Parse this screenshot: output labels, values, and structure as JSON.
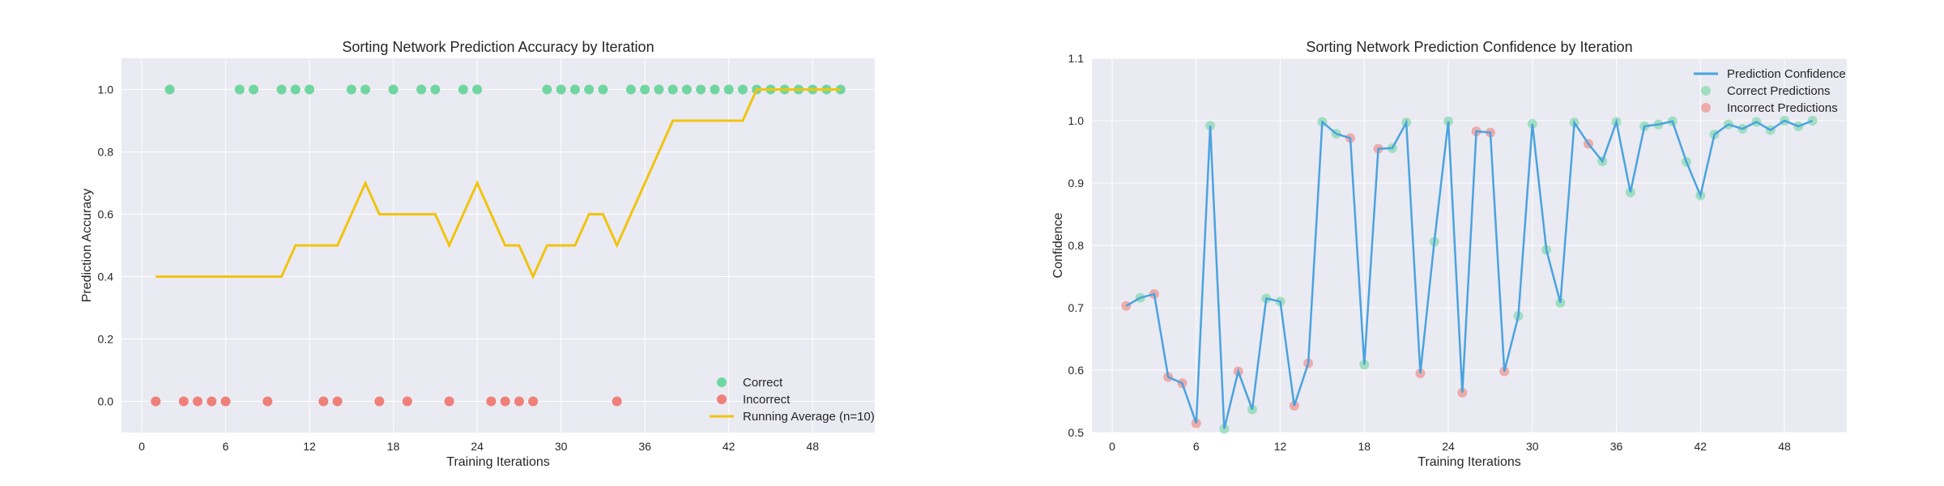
{
  "colors": {
    "correct": "#6fd6a0",
    "incorrect": "#ee8079",
    "running": "#f1c40f",
    "confidence": "#4aa3df",
    "plot_bg": "#eaeaf2",
    "grid": "#ffffff"
  },
  "chart_data": [
    {
      "type": "scatter",
      "title": "Sorting Network Prediction Accuracy by Iteration",
      "xlabel": "Training Iterations",
      "ylabel": "Prediction Accuracy",
      "xlim": [
        -1.45,
        52.45
      ],
      "ylim": [
        -0.1,
        1.1
      ],
      "xticks": [
        0,
        6,
        12,
        18,
        24,
        30,
        36,
        42,
        48
      ],
      "yticks": [
        "0.0",
        "0.2",
        "0.4",
        "0.6",
        "0.8",
        "1.0"
      ],
      "grid": true,
      "legend_position": "bottom-right",
      "legend": [
        "Correct",
        "Incorrect",
        "Running Average (n=10)"
      ],
      "x": [
        1,
        2,
        3,
        4,
        5,
        6,
        7,
        8,
        9,
        10,
        11,
        12,
        13,
        14,
        15,
        16,
        17,
        18,
        19,
        20,
        21,
        22,
        23,
        24,
        25,
        26,
        27,
        28,
        29,
        30,
        31,
        32,
        33,
        34,
        35,
        36,
        37,
        38,
        39,
        40,
        41,
        42,
        43,
        44,
        45,
        46,
        47,
        48,
        49,
        50
      ],
      "outcome": [
        0,
        1,
        0,
        0,
        0,
        0,
        1,
        1,
        0,
        1,
        1,
        1,
        0,
        0,
        1,
        1,
        0,
        1,
        0,
        1,
        1,
        0,
        1,
        1,
        0,
        0,
        0,
        0,
        1,
        1,
        1,
        1,
        1,
        0,
        1,
        1,
        1,
        1,
        1,
        1,
        1,
        1,
        1,
        1,
        1,
        1,
        1,
        1,
        1,
        1
      ],
      "running_average": [
        0.4,
        0.4,
        0.4,
        0.4,
        0.4,
        0.4,
        0.4,
        0.4,
        0.4,
        0.4,
        0.5,
        0.5,
        0.5,
        0.5,
        0.6,
        0.7,
        0.6,
        0.6,
        0.6,
        0.6,
        0.6,
        0.5,
        0.6,
        0.7,
        0.6,
        0.5,
        0.5,
        0.4,
        0.5,
        0.5,
        0.5,
        0.6,
        0.6,
        0.5,
        0.6,
        0.7,
        0.8,
        0.9,
        0.9,
        0.9,
        0.9,
        0.9,
        0.9,
        1.0,
        1.0,
        1.0,
        1.0,
        1.0,
        1.0,
        1.0
      ]
    },
    {
      "type": "line",
      "title": "Sorting Network Prediction Confidence by Iteration",
      "xlabel": "Training Iterations",
      "ylabel": "Confidence",
      "xlim": [
        -1.45,
        52.45
      ],
      "ylim": [
        0.5,
        1.1
      ],
      "xticks": [
        0,
        6,
        12,
        18,
        24,
        30,
        36,
        42,
        48
      ],
      "yticks": [
        "0.5",
        "0.6",
        "0.7",
        "0.8",
        "0.9",
        "1.0",
        "1.1"
      ],
      "grid": true,
      "legend_position": "top-right",
      "legend": [
        "Prediction Confidence",
        "Correct Predictions",
        "Incorrect Predictions"
      ],
      "x": [
        1,
        2,
        3,
        4,
        5,
        6,
        7,
        8,
        9,
        10,
        11,
        12,
        13,
        14,
        15,
        16,
        17,
        18,
        19,
        20,
        21,
        22,
        23,
        24,
        25,
        26,
        27,
        28,
        29,
        30,
        31,
        32,
        33,
        34,
        35,
        36,
        37,
        38,
        39,
        40,
        41,
        42,
        43,
        44,
        45,
        46,
        47,
        48,
        49,
        50
      ],
      "confidence": [
        0.703,
        0.716,
        0.722,
        0.589,
        0.579,
        0.515,
        0.992,
        0.506,
        0.598,
        0.537,
        0.715,
        0.71,
        0.543,
        0.611,
        0.998,
        0.979,
        0.972,
        0.609,
        0.955,
        0.956,
        0.997,
        0.595,
        0.806,
        0.999,
        0.564,
        0.983,
        0.981,
        0.598,
        0.687,
        0.995,
        0.793,
        0.708,
        0.997,
        0.963,
        0.935,
        0.998,
        0.885,
        0.991,
        0.994,
        0.999,
        0.934,
        0.88,
        0.978,
        0.994,
        0.987,
        0.998,
        0.985,
        1.0,
        0.991,
        1.0
      ],
      "outcome": [
        0,
        1,
        0,
        0,
        0,
        0,
        1,
        1,
        0,
        1,
        1,
        1,
        0,
        0,
        1,
        1,
        0,
        1,
        0,
        1,
        1,
        0,
        1,
        1,
        0,
        0,
        0,
        0,
        1,
        1,
        1,
        1,
        1,
        0,
        1,
        1,
        1,
        1,
        1,
        1,
        1,
        1,
        1,
        1,
        1,
        1,
        1,
        1,
        1,
        1
      ]
    }
  ]
}
